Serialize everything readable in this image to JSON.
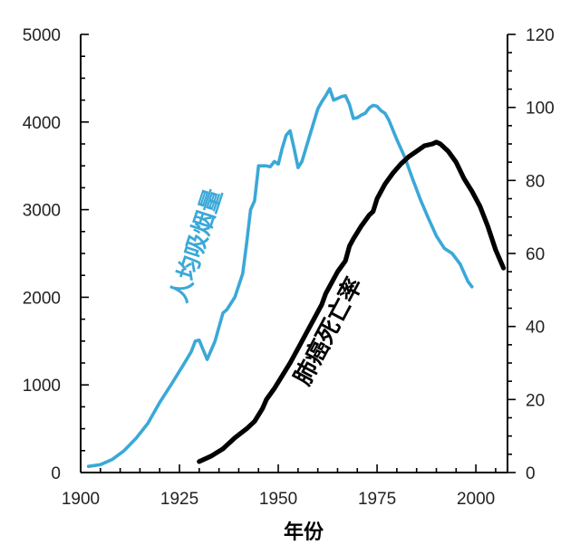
{
  "chart_data": {
    "type": "line",
    "xlabel": "年份",
    "x_ticks": [
      "1900",
      "1925",
      "1950",
      "1975",
      "2000"
    ],
    "xlim": [
      1900,
      2008
    ],
    "left_axis": {
      "ylim": [
        0,
        5000
      ],
      "ticks": [
        "0",
        "1000",
        "2000",
        "3000",
        "4000",
        "5000"
      ]
    },
    "right_axis": {
      "ylim": [
        0,
        120
      ],
      "ticks": [
        "0",
        "20",
        "40",
        "60",
        "80",
        "100",
        "120"
      ]
    },
    "series": [
      {
        "name": "人均吸烟量",
        "axis": "left",
        "color": "#3aa8d8",
        "x": [
          1902,
          1905,
          1908,
          1911,
          1914,
          1917,
          1920,
          1923,
          1926,
          1928,
          1929,
          1930,
          1931,
          1932,
          1934,
          1936,
          1937,
          1939,
          1941,
          1942,
          1943,
          1944,
          1945,
          1947,
          1948,
          1949,
          1950,
          1951,
          1952,
          1953,
          1954,
          1955,
          1956,
          1958,
          1960,
          1961,
          1962,
          1963,
          1964,
          1965,
          1966,
          1967,
          1968,
          1969,
          1970,
          1971,
          1972,
          1973,
          1974,
          1975,
          1976,
          1977,
          1978,
          1980,
          1982,
          1984,
          1986,
          1988,
          1990,
          1992,
          1994,
          1996,
          1998,
          1999
        ],
        "values": [
          70,
          90,
          150,
          250,
          390,
          560,
          800,
          1010,
          1230,
          1380,
          1500,
          1510,
          1400,
          1290,
          1500,
          1820,
          1860,
          2000,
          2270,
          2620,
          3000,
          3100,
          3500,
          3500,
          3490,
          3550,
          3520,
          3700,
          3850,
          3900,
          3700,
          3480,
          3550,
          3850,
          4150,
          4230,
          4300,
          4380,
          4250,
          4270,
          4290,
          4300,
          4200,
          4040,
          4050,
          4080,
          4100,
          4160,
          4190,
          4180,
          4130,
          4100,
          4020,
          3800,
          3600,
          3350,
          3110,
          2900,
          2700,
          2560,
          2500,
          2380,
          2180,
          2120
        ]
      },
      {
        "name": "肺癌死亡率",
        "axis": "right",
        "color": "#000000",
        "x": [
          1930,
          1933,
          1936,
          1939,
          1942,
          1944,
          1946,
          1947,
          1949,
          1951,
          1953,
          1955,
          1957,
          1959,
          1961,
          1962,
          1963,
          1965,
          1967,
          1968,
          1969,
          1971,
          1973,
          1974,
          1975,
          1977,
          1979,
          1981,
          1983,
          1985,
          1987,
          1989,
          1990,
          1991,
          1993,
          1995,
          1997,
          1999,
          2001,
          2003,
          2005,
          2007
        ],
        "values": [
          3,
          4.5,
          6.5,
          9.5,
          12,
          14,
          17.5,
          20,
          23,
          26.5,
          30,
          34,
          38,
          42,
          46,
          49,
          51,
          55,
          58,
          62,
          64,
          67.5,
          70.5,
          71.5,
          75,
          79,
          82,
          84.5,
          86.5,
          88,
          89.5,
          90,
          90.5,
          90,
          88,
          85,
          80.5,
          77,
          73,
          67.5,
          61,
          56
        ]
      }
    ]
  }
}
